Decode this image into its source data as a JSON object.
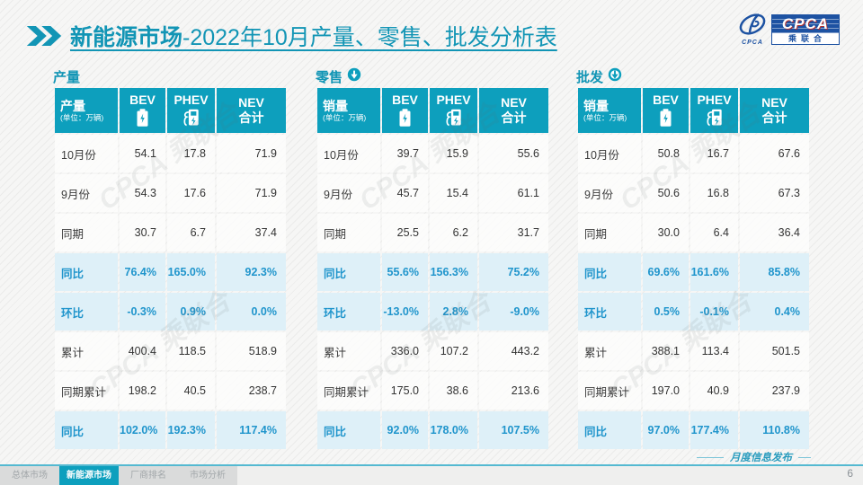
{
  "header": {
    "title_bold": "新能源市场",
    "title_rest": "-2022年10月产量、零售、批发分析表"
  },
  "logo": {
    "mark_text": "CPCA",
    "box_text": "CPCA",
    "sub_text": "乘联合"
  },
  "watermark": {
    "text": "CPCA 乘联合"
  },
  "colors": {
    "accent": "#0d9fbd",
    "title": "#1295b5",
    "highlight_text": "#2095cc",
    "highlight_bg": "#def0f8",
    "logo_blue": "#1d52a2"
  },
  "columns": {
    "bev": "BEV",
    "phev": "PHEV",
    "nev_line1": "NEV",
    "nev_line2": "合计"
  },
  "tables": [
    {
      "section_title": "产量",
      "arrow_style": null,
      "corner_label": "产量",
      "corner_unit": "(单位：万辆)",
      "rows": [
        {
          "label": "10月份",
          "values": [
            "54.1",
            "17.8",
            "71.9"
          ],
          "style": "plain"
        },
        {
          "label": "9月份",
          "values": [
            "54.3",
            "17.6",
            "71.9"
          ],
          "style": "plain"
        },
        {
          "label": "同期",
          "values": [
            "30.7",
            "6.7",
            "37.4"
          ],
          "style": "plain"
        },
        {
          "label": "同比",
          "values": [
            "76.4%",
            "165.0%",
            "92.3%"
          ],
          "style": "hl"
        },
        {
          "label": "环比",
          "values": [
            "-0.3%",
            "0.9%",
            "0.0%"
          ],
          "style": "hl"
        },
        {
          "label": "累计",
          "values": [
            "400.4",
            "118.5",
            "518.9"
          ],
          "style": "plain"
        },
        {
          "label": "同期累计",
          "values": [
            "198.2",
            "40.5",
            "238.7"
          ],
          "style": "plain"
        },
        {
          "label": "同比",
          "values": [
            "102.0%",
            "192.3%",
            "117.4%"
          ],
          "style": "hl"
        }
      ]
    },
    {
      "section_title": "零售",
      "arrow_style": "solid",
      "corner_label": "销量",
      "corner_unit": "(单位：万辆)",
      "rows": [
        {
          "label": "10月份",
          "values": [
            "39.7",
            "15.9",
            "55.6"
          ],
          "style": "plain"
        },
        {
          "label": "9月份",
          "values": [
            "45.7",
            "15.4",
            "61.1"
          ],
          "style": "plain"
        },
        {
          "label": "同期",
          "values": [
            "25.5",
            "6.2",
            "31.7"
          ],
          "style": "plain"
        },
        {
          "label": "同比",
          "values": [
            "55.6%",
            "156.3%",
            "75.2%"
          ],
          "style": "hl"
        },
        {
          "label": "环比",
          "values": [
            "-13.0%",
            "2.8%",
            "-9.0%"
          ],
          "style": "hl"
        },
        {
          "label": "累计",
          "values": [
            "336.0",
            "107.2",
            "443.2"
          ],
          "style": "plain"
        },
        {
          "label": "同期累计",
          "values": [
            "175.0",
            "38.6",
            "213.6"
          ],
          "style": "plain"
        },
        {
          "label": "同比",
          "values": [
            "92.0%",
            "178.0%",
            "107.5%"
          ],
          "style": "hl"
        }
      ]
    },
    {
      "section_title": "批发",
      "arrow_style": "ring",
      "corner_label": "销量",
      "corner_unit": "(单位：万辆)",
      "rows": [
        {
          "label": "10月份",
          "values": [
            "50.8",
            "16.7",
            "67.6"
          ],
          "style": "plain"
        },
        {
          "label": "9月份",
          "values": [
            "50.6",
            "16.8",
            "67.3"
          ],
          "style": "plain"
        },
        {
          "label": "同期",
          "values": [
            "30.0",
            "6.4",
            "36.4"
          ],
          "style": "plain"
        },
        {
          "label": "同比",
          "values": [
            "69.6%",
            "161.6%",
            "85.8%"
          ],
          "style": "hl"
        },
        {
          "label": "环比",
          "values": [
            "0.5%",
            "-0.1%",
            "0.4%"
          ],
          "style": "hl"
        },
        {
          "label": "累计",
          "values": [
            "388.1",
            "113.4",
            "501.5"
          ],
          "style": "plain"
        },
        {
          "label": "同期累计",
          "values": [
            "197.0",
            "40.9",
            "237.9"
          ],
          "style": "plain"
        },
        {
          "label": "同比",
          "values": [
            "97.0%",
            "177.4%",
            "110.8%"
          ],
          "style": "hl"
        }
      ]
    }
  ],
  "footer": {
    "tabs": [
      {
        "label": "总体市场",
        "active": false
      },
      {
        "label": "新能源市场",
        "active": true
      },
      {
        "label": "厂商排名",
        "active": false
      },
      {
        "label": "市场分析",
        "active": false
      }
    ],
    "note": "月度信息发布",
    "page": "6"
  }
}
